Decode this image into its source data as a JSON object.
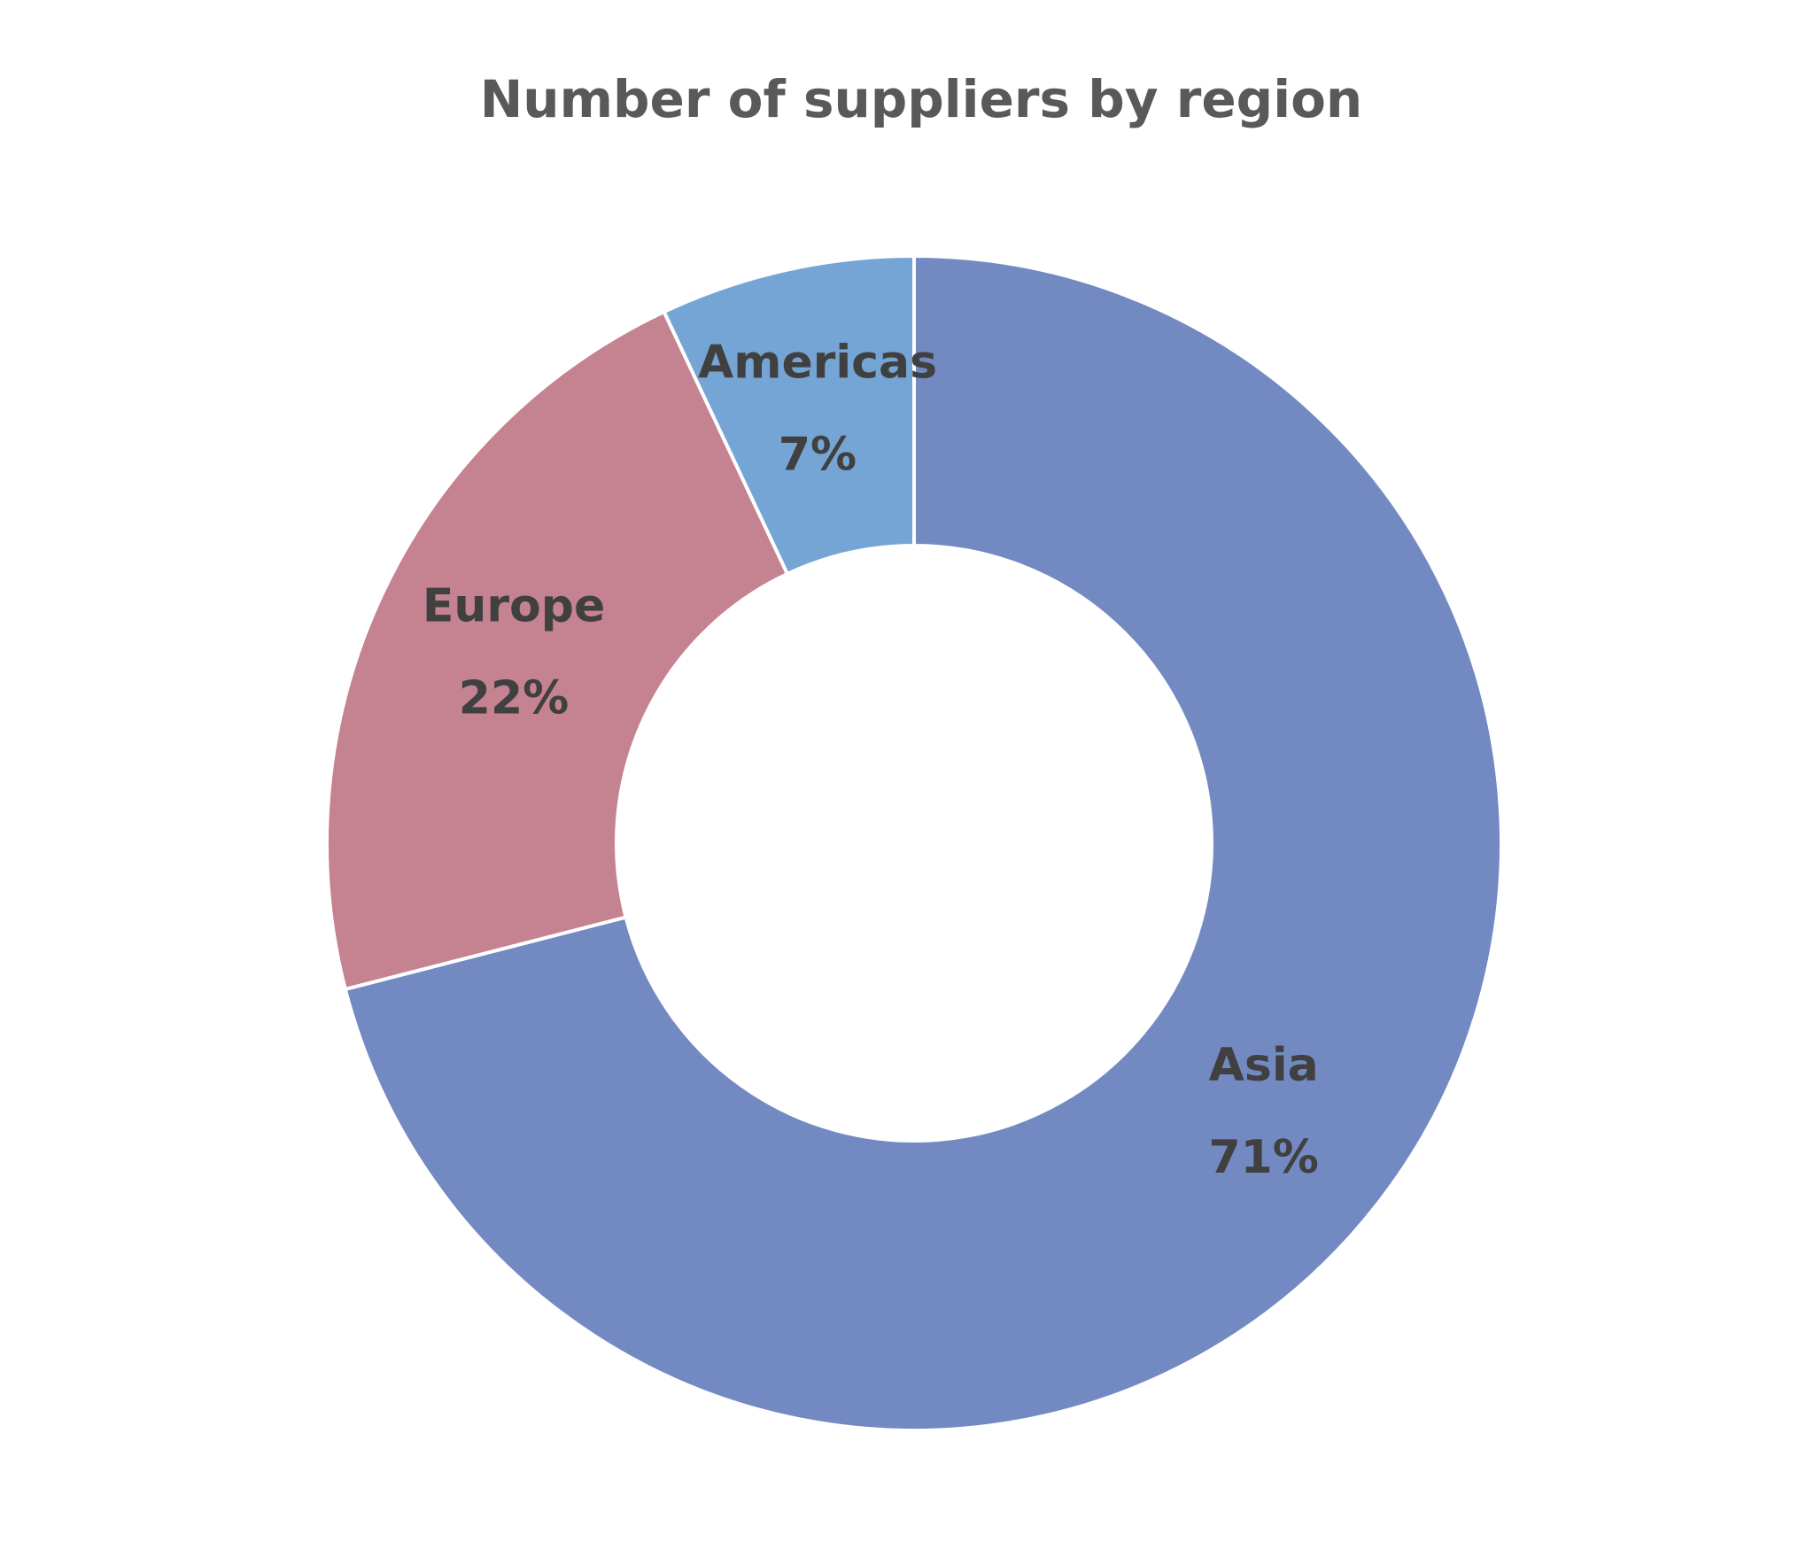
{
  "chart_data": {
    "type": "donut",
    "title": "Number of suppliers by region",
    "categories": [
      "Asia",
      "Europe",
      "Americas"
    ],
    "values": [
      71,
      22,
      7
    ],
    "value_labels": [
      "71%",
      "22%",
      "7%"
    ],
    "colors": [
      "#7389c2",
      "#c58290",
      "#75a5d4"
    ]
  }
}
